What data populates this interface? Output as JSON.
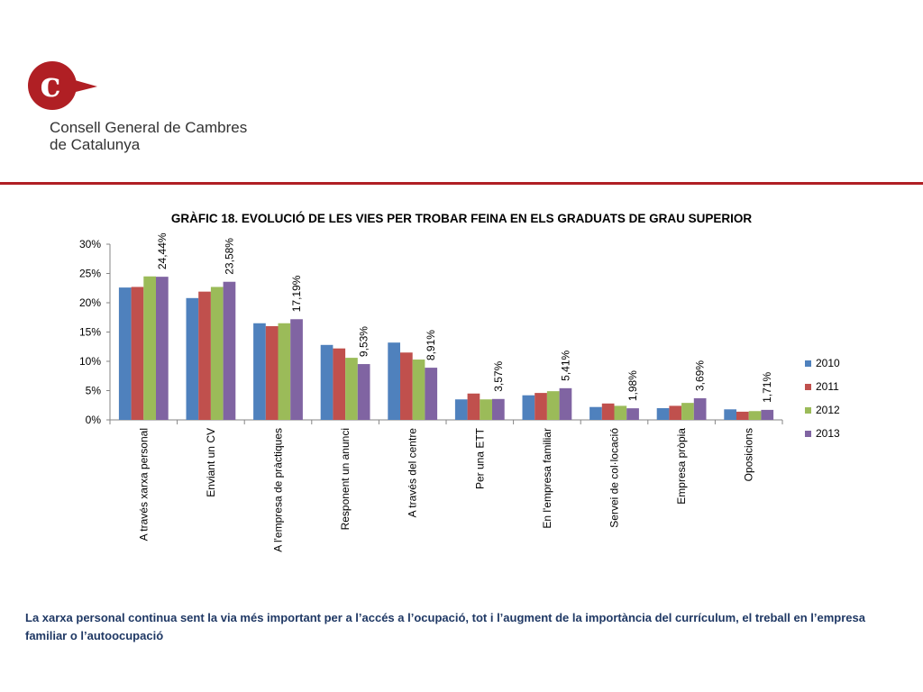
{
  "brand": {
    "name_line1": "Consell General de Cambres",
    "name_line2": "de Catalunya",
    "logo_letter": "c",
    "color": "#b01f24"
  },
  "chart_data": {
    "type": "bar",
    "title": "GRÀFIC 18. EVOLUCIÓ DE LES VIES PER TROBAR FEINA EN ELS GRADUATS DE GRAU SUPERIOR",
    "xlabel": "",
    "ylabel": "",
    "ylim": [
      0,
      30
    ],
    "yticks": [
      "0%",
      "5%",
      "10%",
      "15%",
      "20%",
      "25%",
      "30%"
    ],
    "grid": false,
    "legend_position": "right",
    "categories": [
      "A través xarxa personal",
      "Enviant un CV",
      "A l'empresa de pràctiques",
      "Responent un anunci",
      "A  través del centre",
      "Per una ETT",
      "En l'empresa familiar",
      "Servei de col·locació",
      "Empresa pròpia",
      "Oposicions"
    ],
    "series": [
      {
        "name": "2010",
        "color": "#4f81bd",
        "values": [
          22.6,
          20.8,
          16.5,
          12.8,
          13.2,
          3.5,
          4.2,
          2.2,
          2.0,
          1.8
        ]
      },
      {
        "name": "2011",
        "color": "#c0504d",
        "values": [
          22.7,
          21.9,
          16.0,
          12.2,
          11.5,
          4.5,
          4.6,
          2.8,
          2.4,
          1.4
        ]
      },
      {
        "name": "2012",
        "color": "#9bbb59",
        "values": [
          24.5,
          22.7,
          16.5,
          10.6,
          10.3,
          3.5,
          4.9,
          2.4,
          2.9,
          1.5
        ]
      },
      {
        "name": "2013",
        "color": "#8064a2",
        "values": [
          24.44,
          23.58,
          17.19,
          9.53,
          8.91,
          3.57,
          5.41,
          1.98,
          3.69,
          1.71
        ]
      }
    ],
    "data_labels_series": "2013",
    "data_labels": [
      "24,44%",
      "23,58%",
      "17,19%",
      "9,53%",
      "8,91%",
      "3,57%",
      "5,41%",
      "1,98%",
      "3,69%",
      "1,71%"
    ]
  },
  "caption": "La xarxa personal continua sent la via més important per a l’accés a l’ocupació, tot i l’augment de la importància del currículum, el treball en l’empresa familiar o l’autoocupació"
}
